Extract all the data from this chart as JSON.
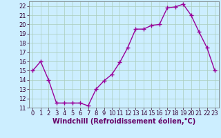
{
  "x": [
    0,
    1,
    2,
    3,
    4,
    5,
    6,
    7,
    8,
    9,
    10,
    11,
    12,
    13,
    14,
    15,
    16,
    17,
    18,
    19,
    20,
    21,
    22,
    23
  ],
  "y": [
    15.0,
    16.0,
    14.0,
    11.5,
    11.5,
    11.5,
    11.5,
    11.2,
    13.0,
    13.9,
    14.6,
    15.9,
    17.5,
    19.5,
    19.5,
    19.9,
    20.0,
    21.8,
    21.9,
    22.2,
    21.0,
    19.2,
    17.5,
    15.0
  ],
  "line_color": "#990099",
  "bg_color": "#cceeff",
  "grid_color": "#aaccbb",
  "xlabel": "Windchill (Refroidissement éolien,°C)",
  "xlabel_color": "#660066",
  "xlabel_fontsize": 7,
  "ylim": [
    11,
    22.5
  ],
  "xlim": [
    -0.5,
    23.5
  ],
  "yticks": [
    11,
    12,
    13,
    14,
    15,
    16,
    17,
    18,
    19,
    20,
    21,
    22
  ],
  "xticks": [
    0,
    1,
    2,
    3,
    4,
    5,
    6,
    7,
    8,
    9,
    10,
    11,
    12,
    13,
    14,
    15,
    16,
    17,
    18,
    19,
    20,
    21,
    22,
    23
  ],
  "tick_fontsize": 6,
  "marker": "+",
  "markersize": 4,
  "linewidth": 1.0
}
